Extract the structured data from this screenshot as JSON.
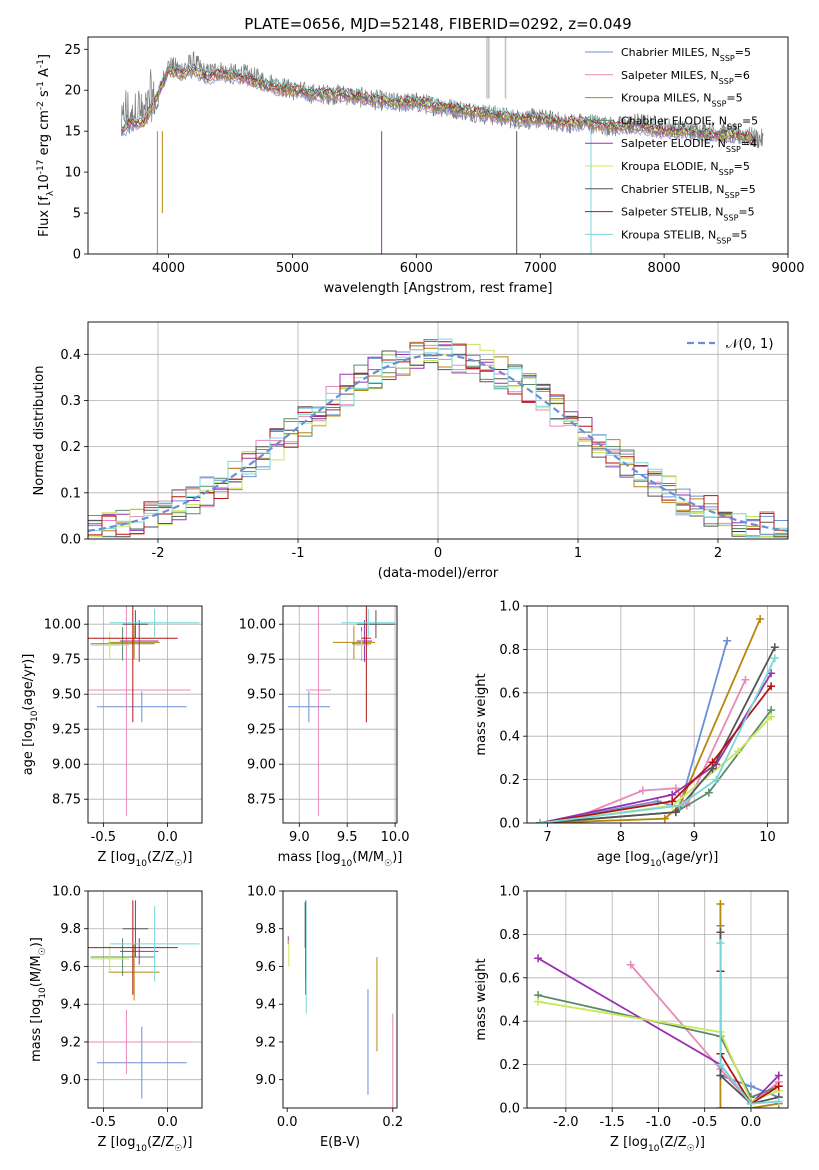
{
  "figure": {
    "title": "PLATE=0656, MJD=52148, FIBERID=0292, z=0.049"
  },
  "series_styles": [
    {
      "name": "Chabrier MILES, N_SSP=5",
      "color": "#6a8fd6"
    },
    {
      "name": "Salpeter MILES, N_SSP=6",
      "color": "#e88ab8"
    },
    {
      "name": "Kroupa MILES, N_SSP=5",
      "color": "#b8860b"
    },
    {
      "name": "Chabrier ELODIE, N_SSP=5",
      "color": "#5c8a6a"
    },
    {
      "name": "Salpeter ELODIE, N_SSP=4",
      "color": "#9b30b0"
    },
    {
      "name": "Kroupa ELODIE, N_SSP=5",
      "color": "#c8e85a"
    },
    {
      "name": "Chabrier STELIB, N_SSP=5",
      "color": "#555555"
    },
    {
      "name": "Salpeter STELIB, N_SSP=5",
      "color": "#b01515"
    },
    {
      "name": "Kroupa STELIB, N_SSP=5",
      "color": "#78d8d8"
    }
  ],
  "chart_data": [
    {
      "id": "spectrum",
      "type": "line",
      "xlabel": "wavelength [Angstrom, rest frame]",
      "ylabel_parts": [
        "Flux [f",
        "λ",
        "10",
        "-17",
        " erg cm",
        "-2",
        " s",
        "-1",
        " A",
        "-1",
        "]"
      ],
      "xlim": [
        3350,
        9000
      ],
      "ylim": [
        0,
        26.5
      ],
      "xticks": [
        4000,
        5000,
        6000,
        7000,
        8000,
        9000
      ],
      "yticks": [
        0,
        5,
        10,
        15,
        20,
        25
      ],
      "legend": {
        "placement": "upper-right",
        "entries": [
          {
            "base": "Chabrier MILES, N",
            "sub": "SSP",
            "tail": "=5"
          },
          {
            "base": "Salpeter MILES, N",
            "sub": "SSP",
            "tail": "=6"
          },
          {
            "base": "Kroupa MILES, N",
            "sub": "SSP",
            "tail": "=5"
          },
          {
            "base": "Chabrier ELODIE, N",
            "sub": "SSP",
            "tail": "=5"
          },
          {
            "base": "Salpeter ELODIE, N",
            "sub": "SSP",
            "tail": "=4"
          },
          {
            "base": "Kroupa ELODIE, N",
            "sub": "SSP",
            "tail": "=5"
          },
          {
            "base": "Chabrier STELIB, N",
            "sub": "SSP",
            "tail": "=5"
          },
          {
            "base": "Salpeter STELIB, N",
            "sub": "SSP",
            "tail": "=5"
          },
          {
            "base": "Kroupa STELIB, N",
            "sub": "SSP",
            "tail": "=5"
          }
        ]
      },
      "observed": {
        "color": "#7a7a7a",
        "x": [
          3620,
          3650,
          3700,
          3750,
          3800,
          3850,
          3900,
          3950,
          4000,
          4100,
          4200,
          4300,
          4400,
          4500,
          4600,
          4700,
          4800,
          4900,
          5000,
          5200,
          5400,
          5600,
          5800,
          6000,
          6200,
          6400,
          6600,
          6800,
          7000,
          7200,
          7400,
          7600,
          7800,
          8000,
          8200,
          8400,
          8600,
          8800
        ],
        "y": [
          15.0,
          17.5,
          16.0,
          18.5,
          16.5,
          19.5,
          18.0,
          21.0,
          23.0,
          22.5,
          23.5,
          22.0,
          22.5,
          22.0,
          22.0,
          21.5,
          21.0,
          20.5,
          20.0,
          19.5,
          19.5,
          19.0,
          18.5,
          18.5,
          18.0,
          17.5,
          17.0,
          16.5,
          16.5,
          16.0,
          16.0,
          15.5,
          16.0,
          15.5,
          15.0,
          15.0,
          14.5,
          14.0
        ]
      },
      "model": {
        "x": [
          3620,
          3700,
          3800,
          3900,
          4000,
          4100,
          4200,
          4300,
          4400,
          4600,
          4800,
          5000,
          5200,
          5400,
          5600,
          5800,
          6000,
          6200,
          6400,
          6600,
          6800,
          7000,
          7200,
          7400,
          7600,
          7800,
          8000,
          8200,
          8400,
          8600,
          8750
        ],
        "y": [
          15.0,
          16.0,
          16.0,
          19.0,
          22.5,
          22.0,
          22.5,
          21.5,
          22.0,
          21.5,
          20.5,
          20.0,
          19.5,
          19.5,
          19.0,
          18.5,
          18.5,
          18.0,
          17.5,
          17.0,
          16.5,
          16.5,
          16.0,
          16.0,
          15.5,
          15.5,
          15.0,
          15.0,
          14.5,
          14.5,
          14.0
        ]
      }
    },
    {
      "id": "residuals",
      "type": "line",
      "xlabel": "(data-model)/error",
      "ylabel": "Normed distribution",
      "xlim": [
        -2.5,
        2.5
      ],
      "ylim": [
        0,
        0.47
      ],
      "xticks": [
        -2,
        -1,
        0,
        1,
        2
      ],
      "yticks": [
        0.0,
        0.1,
        0.2,
        0.3,
        0.4
      ],
      "grid": true,
      "legend": {
        "placement": "upper-right",
        "label": "𝒩(0, 1)"
      },
      "normal_curve": {
        "mean": 0,
        "sigma": 1,
        "color": "#6a8fd6"
      },
      "hist_bin_width": 0.1
    },
    {
      "id": "age-vs-Z",
      "type": "scatter",
      "xlabel_parts": [
        "Z [log",
        "10",
        "(Z/Z",
        "☉",
        ")]"
      ],
      "ylabel_parts": [
        "age  [log",
        "10",
        "(age/yr)]"
      ],
      "xlim": [
        -0.62,
        0.27
      ],
      "ylim": [
        8.58,
        10.13
      ],
      "xticks": [
        -0.5,
        0.0
      ],
      "yticks": [
        8.75,
        9.0,
        9.25,
        9.5,
        9.75,
        10.0
      ],
      "grid": true,
      "points": [
        {
          "x": -0.2,
          "xerr": 0.35,
          "y": 9.41,
          "yerr": 0.11
        },
        {
          "x": -0.32,
          "xerr": 0.5,
          "y": 9.53,
          "yerr": 0.9
        },
        {
          "x": -0.26,
          "xerr": 0.2,
          "y": 9.87,
          "yerr": 0.12
        },
        {
          "x": -0.35,
          "xerr": 0.25,
          "y": 9.86,
          "yerr": 0.12
        },
        {
          "x": -0.22,
          "xerr": 0.15,
          "y": 9.88,
          "yerr": 0.15
        },
        {
          "x": -0.45,
          "xerr": 0.15,
          "y": 9.85,
          "yerr": 0.1
        },
        {
          "x": -0.25,
          "xerr": 0.1,
          "y": 10.0,
          "yerr": 0.1
        },
        {
          "x": -0.27,
          "xerr": 0.35,
          "y": 9.9,
          "yerr": 0.6
        },
        {
          "x": -0.1,
          "xerr": 0.35,
          "y": 10.01,
          "yerr": 0.1
        }
      ]
    },
    {
      "id": "age-vs-mass",
      "type": "scatter",
      "xlabel_parts": [
        "mass [log",
        "10",
        "(M/M",
        "☉",
        ")]"
      ],
      "xlim": [
        8.83,
        10.02
      ],
      "ylim": [
        8.58,
        10.13
      ],
      "xticks": [
        9.0,
        9.5,
        10.0
      ],
      "yticks": [
        8.75,
        9.0,
        9.25,
        9.5,
        9.75,
        10.0
      ],
      "grid": true,
      "points": [
        {
          "x": 9.1,
          "xerr": 0.22,
          "y": 9.41,
          "yerr": 0.11
        },
        {
          "x": 9.2,
          "xerr": 0.13,
          "y": 9.53,
          "yerr": 0.9
        },
        {
          "x": 9.57,
          "xerr": 0.22,
          "y": 9.87,
          "yerr": 0.12
        },
        {
          "x": 9.65,
          "xerr": 0.1,
          "y": 9.86,
          "yerr": 0.12
        },
        {
          "x": 9.68,
          "xerr": 0.08,
          "y": 9.88,
          "yerr": 0.15
        },
        {
          "x": 9.65,
          "xerr": 0.08,
          "y": 9.85,
          "yerr": 0.1
        },
        {
          "x": 9.8,
          "xerr": 0.2,
          "y": 10.0,
          "yerr": 0.1
        },
        {
          "x": 9.7,
          "xerr": 0.05,
          "y": 9.9,
          "yerr": 0.6
        },
        {
          "x": 9.72,
          "xerr": 0.28,
          "y": 10.01,
          "yerr": 0.1
        }
      ]
    },
    {
      "id": "mass-weight-vs-age",
      "type": "line",
      "xlabel_parts": [
        "age  [log",
        "10",
        "(age/yr)]"
      ],
      "ylabel": "mass weight",
      "xlim": [
        6.72,
        10.28
      ],
      "ylim": [
        0,
        1.0
      ],
      "xticks": [
        7,
        8,
        9,
        10
      ],
      "yticks": [
        0.0,
        0.2,
        0.4,
        0.6,
        0.8,
        1.0
      ],
      "grid": true,
      "series": [
        {
          "x": [
            6.9,
            8.5,
            8.8,
            9.45
          ],
          "y": [
            0.0,
            0.1,
            0.07,
            0.84
          ]
        },
        {
          "x": [
            6.9,
            7.2,
            8.3,
            8.75,
            8.9,
            9.7
          ],
          "y": [
            0.0,
            0.0,
            0.15,
            0.16,
            0.08,
            0.66
          ]
        },
        {
          "x": [
            6.9,
            8.6,
            8.8,
            9.9
          ],
          "y": [
            0.0,
            0.02,
            0.08,
            0.94
          ]
        },
        {
          "x": [
            6.9,
            8.75,
            9.2,
            10.05
          ],
          "y": [
            0.0,
            0.05,
            0.14,
            0.52
          ]
        },
        {
          "x": [
            6.9,
            8.7,
            9.3,
            10.05
          ],
          "y": [
            0.0,
            0.13,
            0.27,
            0.69
          ]
        },
        {
          "x": [
            6.9,
            8.7,
            9.6,
            10.05
          ],
          "y": [
            0.0,
            0.08,
            0.33,
            0.49
          ]
        },
        {
          "x": [
            6.9,
            8.75,
            9.25,
            10.1
          ],
          "y": [
            0.0,
            0.05,
            0.25,
            0.81
          ]
        },
        {
          "x": [
            6.9,
            8.7,
            9.25,
            10.05
          ],
          "y": [
            0.0,
            0.1,
            0.28,
            0.63
          ]
        },
        {
          "x": [
            6.9,
            8.8,
            9.3,
            10.1
          ],
          "y": [
            0.0,
            0.08,
            0.2,
            0.76
          ]
        }
      ]
    },
    {
      "id": "mass-vs-Z",
      "type": "scatter",
      "xlabel_parts": [
        "Z [log",
        "10",
        "(Z/Z",
        "☉",
        ")]"
      ],
      "ylabel_parts": [
        "mass [log",
        "10",
        "(M/M",
        "☉",
        ")]"
      ],
      "xlim": [
        -0.62,
        0.27
      ],
      "ylim": [
        8.85,
        10.0
      ],
      "xticks": [
        -0.5,
        0.0
      ],
      "yticks": [
        9.0,
        9.2,
        9.4,
        9.6,
        9.8,
        10.0
      ],
      "grid": true,
      "points": [
        {
          "x": -0.2,
          "xerr": 0.35,
          "y": 9.09,
          "yerr": 0.19
        },
        {
          "x": -0.32,
          "xerr": 0.5,
          "y": 9.2,
          "yerr": 0.17
        },
        {
          "x": -0.26,
          "xerr": 0.2,
          "y": 9.57,
          "yerr": 0.15
        },
        {
          "x": -0.35,
          "xerr": 0.25,
          "y": 9.65,
          "yerr": 0.1
        },
        {
          "x": -0.22,
          "xerr": 0.15,
          "y": 9.68,
          "yerr": 0.07
        },
        {
          "x": -0.45,
          "xerr": 0.15,
          "y": 9.64,
          "yerr": 0.07
        },
        {
          "x": -0.25,
          "xerr": 0.1,
          "y": 9.8,
          "yerr": 0.15
        },
        {
          "x": -0.27,
          "xerr": 0.35,
          "y": 9.7,
          "yerr": 0.25
        },
        {
          "x": -0.1,
          "xerr": 0.35,
          "y": 9.72,
          "yerr": 0.2
        }
      ]
    },
    {
      "id": "mass-vs-ebv",
      "type": "scatter",
      "xlabel": "E(B-V)",
      "xlim": [
        -0.008,
        0.208
      ],
      "ylim": [
        8.85,
        10.0
      ],
      "xticks": [
        0.0,
        0.2
      ],
      "yticks": [
        9.0,
        9.2,
        9.4,
        9.6,
        9.8,
        10.0
      ],
      "grid": false,
      "points": [
        {
          "x": 0.153,
          "xerr": 0,
          "y": 9.2,
          "yerr": 0.28
        },
        {
          "x": 0.2,
          "xerr": 0,
          "y": 9.1,
          "yerr": 0.25
        },
        {
          "x": 0.17,
          "xerr": 0,
          "y": 9.4,
          "yerr": 0.25
        },
        {
          "x": 0.035,
          "xerr": 0,
          "y": 9.7,
          "yerr": 0.18
        },
        {
          "x": 0.002,
          "xerr": 0,
          "y": 9.74,
          "yerr": 0.02
        },
        {
          "x": 0.003,
          "xerr": 0,
          "y": 9.67,
          "yerr": 0.07
        },
        {
          "x": 0.034,
          "xerr": 0,
          "y": 9.82,
          "yerr": 0.12
        },
        {
          "x": 0.035,
          "xerr": 0,
          "y": 9.7,
          "yerr": 0.25
        },
        {
          "x": 0.036,
          "xerr": 0,
          "y": 9.65,
          "yerr": 0.3
        }
      ]
    },
    {
      "id": "mass-weight-vs-Z",
      "type": "line",
      "xlabel_parts": [
        "Z [log",
        "10",
        "(Z/Z",
        "☉",
        ")]"
      ],
      "ylabel": "mass weight",
      "xlim": [
        -2.42,
        0.4
      ],
      "ylim": [
        0,
        1.0
      ],
      "xticks": [
        -2.0,
        -1.5,
        -1.0,
        -0.5,
        0.0
      ],
      "yticks": [
        0.0,
        0.2,
        0.4,
        0.6,
        0.8,
        1.0
      ],
      "grid": true,
      "series": [
        {
          "x": [
            -0.33,
            -0.33,
            0.0,
            0.3
          ],
          "y": [
            0.84,
            0.15,
            0.1,
            0.05
          ]
        },
        {
          "x": [
            -1.3,
            -0.33,
            0.0,
            0.3
          ],
          "y": [
            0.66,
            0.18,
            0.02,
            0.12
          ]
        },
        {
          "x": [
            -0.33,
            -0.33,
            0.0,
            0.3
          ],
          "y": [
            0.94,
            0.0,
            0.0,
            0.02
          ]
        },
        {
          "x": [
            -2.3,
            -0.33,
            0.0,
            0.3
          ],
          "y": [
            0.52,
            0.33,
            0.05,
            0.1
          ]
        },
        {
          "x": [
            -2.3,
            -0.33,
            0.0,
            0.3
          ],
          "y": [
            0.69,
            0.2,
            0.02,
            0.15
          ]
        },
        {
          "x": [
            -2.3,
            -0.33,
            0.0,
            0.3
          ],
          "y": [
            0.49,
            0.35,
            0.03,
            0.08
          ]
        },
        {
          "x": [
            -0.33,
            -0.33,
            0.0,
            0.3
          ],
          "y": [
            0.81,
            0.15,
            0.02,
            0.05
          ]
        },
        {
          "x": [
            -0.33,
            -0.33,
            0.0,
            0.3
          ],
          "y": [
            0.63,
            0.25,
            0.02,
            0.1
          ]
        },
        {
          "x": [
            -0.33,
            -0.33,
            0.0,
            0.3
          ],
          "y": [
            0.76,
            0.2,
            0.02,
            0.03
          ]
        }
      ]
    }
  ]
}
